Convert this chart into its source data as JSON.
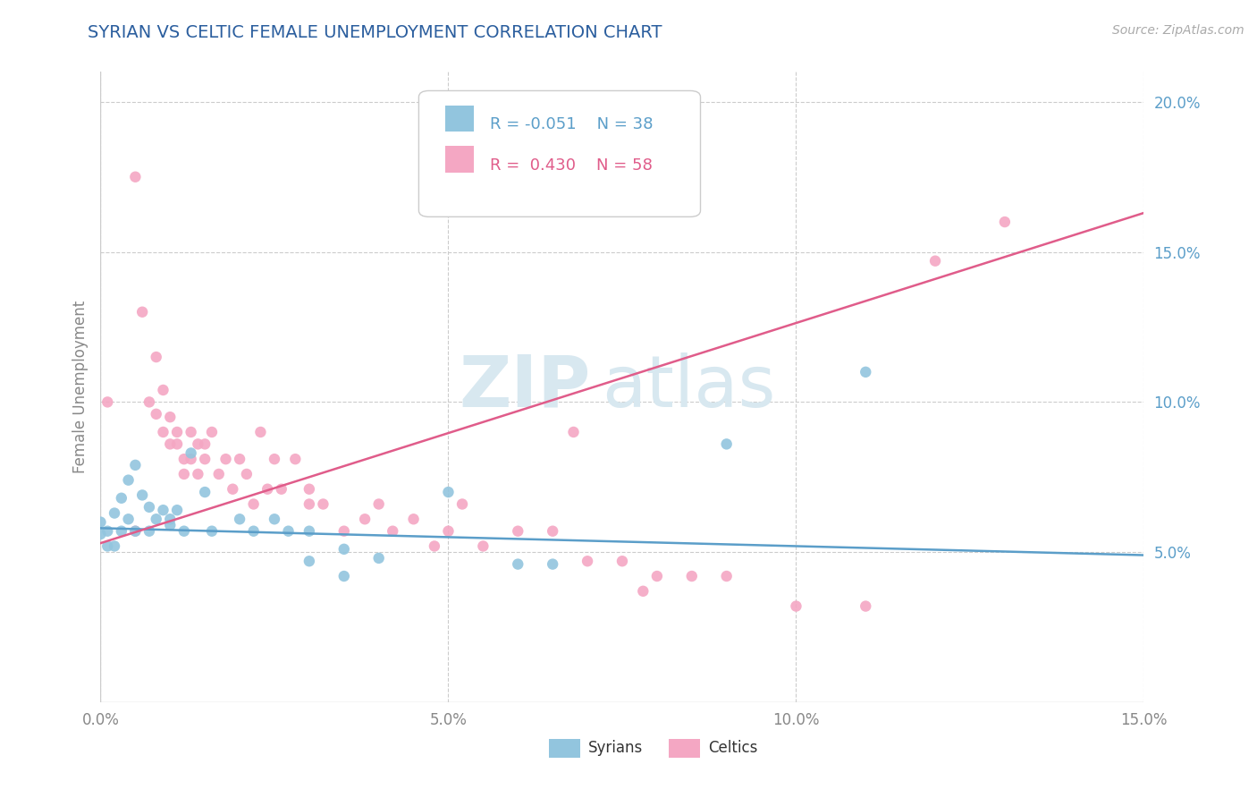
{
  "title": "SYRIAN VS CELTIC FEMALE UNEMPLOYMENT CORRELATION CHART",
  "source": "Source: ZipAtlas.com",
  "ylabel": "Female Unemployment",
  "xlim": [
    0.0,
    0.15
  ],
  "ylim": [
    0.0,
    0.21
  ],
  "ytick_labels": [
    "5.0%",
    "10.0%",
    "15.0%",
    "20.0%"
  ],
  "ytick_values": [
    0.05,
    0.1,
    0.15,
    0.2
  ],
  "xtick_labels": [
    "0.0%",
    "5.0%",
    "10.0%",
    "15.0%"
  ],
  "xtick_values": [
    0.0,
    0.05,
    0.1,
    0.15
  ],
  "syrians_R": "-0.051",
  "syrians_N": "38",
  "celtics_R": "0.430",
  "celtics_N": "58",
  "syrians_color": "#92C5DE",
  "celtics_color": "#F4A7C3",
  "syrian_line_color": "#5B9EC9",
  "celtic_line_color": "#E05C8A",
  "watermark_zip": "ZIP",
  "watermark_atlas": "atlas",
  "legend_label_syrians": "Syrians",
  "legend_label_celtics": "Celtics",
  "syrians_points": [
    [
      0.0,
      0.056
    ],
    [
      0.0,
      0.06
    ],
    [
      0.001,
      0.052
    ],
    [
      0.001,
      0.057
    ],
    [
      0.002,
      0.063
    ],
    [
      0.002,
      0.052
    ],
    [
      0.003,
      0.068
    ],
    [
      0.003,
      0.057
    ],
    [
      0.004,
      0.074
    ],
    [
      0.004,
      0.061
    ],
    [
      0.005,
      0.079
    ],
    [
      0.005,
      0.057
    ],
    [
      0.006,
      0.069
    ],
    [
      0.007,
      0.065
    ],
    [
      0.007,
      0.057
    ],
    [
      0.008,
      0.061
    ],
    [
      0.009,
      0.064
    ],
    [
      0.01,
      0.059
    ],
    [
      0.01,
      0.061
    ],
    [
      0.011,
      0.064
    ],
    [
      0.012,
      0.057
    ],
    [
      0.013,
      0.083
    ],
    [
      0.015,
      0.07
    ],
    [
      0.016,
      0.057
    ],
    [
      0.02,
      0.061
    ],
    [
      0.022,
      0.057
    ],
    [
      0.025,
      0.061
    ],
    [
      0.027,
      0.057
    ],
    [
      0.03,
      0.047
    ],
    [
      0.03,
      0.057
    ],
    [
      0.035,
      0.042
    ],
    [
      0.035,
      0.051
    ],
    [
      0.04,
      0.048
    ],
    [
      0.05,
      0.07
    ],
    [
      0.06,
      0.046
    ],
    [
      0.065,
      0.046
    ],
    [
      0.09,
      0.086
    ],
    [
      0.11,
      0.11
    ]
  ],
  "celtics_points": [
    [
      0.001,
      0.1
    ],
    [
      0.005,
      0.175
    ],
    [
      0.005,
      0.057
    ],
    [
      0.006,
      0.13
    ],
    [
      0.007,
      0.1
    ],
    [
      0.008,
      0.115
    ],
    [
      0.008,
      0.096
    ],
    [
      0.009,
      0.104
    ],
    [
      0.009,
      0.09
    ],
    [
      0.01,
      0.095
    ],
    [
      0.01,
      0.086
    ],
    [
      0.011,
      0.086
    ],
    [
      0.011,
      0.09
    ],
    [
      0.012,
      0.081
    ],
    [
      0.012,
      0.076
    ],
    [
      0.013,
      0.09
    ],
    [
      0.013,
      0.081
    ],
    [
      0.014,
      0.086
    ],
    [
      0.014,
      0.076
    ],
    [
      0.015,
      0.081
    ],
    [
      0.015,
      0.086
    ],
    [
      0.016,
      0.09
    ],
    [
      0.017,
      0.076
    ],
    [
      0.018,
      0.081
    ],
    [
      0.019,
      0.071
    ],
    [
      0.02,
      0.081
    ],
    [
      0.021,
      0.076
    ],
    [
      0.022,
      0.066
    ],
    [
      0.023,
      0.09
    ],
    [
      0.024,
      0.071
    ],
    [
      0.025,
      0.081
    ],
    [
      0.026,
      0.071
    ],
    [
      0.028,
      0.081
    ],
    [
      0.03,
      0.071
    ],
    [
      0.03,
      0.066
    ],
    [
      0.032,
      0.066
    ],
    [
      0.035,
      0.057
    ],
    [
      0.038,
      0.061
    ],
    [
      0.04,
      0.066
    ],
    [
      0.042,
      0.057
    ],
    [
      0.045,
      0.061
    ],
    [
      0.048,
      0.052
    ],
    [
      0.05,
      0.057
    ],
    [
      0.052,
      0.066
    ],
    [
      0.055,
      0.052
    ],
    [
      0.06,
      0.057
    ],
    [
      0.065,
      0.057
    ],
    [
      0.068,
      0.09
    ],
    [
      0.07,
      0.047
    ],
    [
      0.075,
      0.047
    ],
    [
      0.078,
      0.037
    ],
    [
      0.08,
      0.042
    ],
    [
      0.085,
      0.042
    ],
    [
      0.09,
      0.042
    ],
    [
      0.1,
      0.032
    ],
    [
      0.11,
      0.032
    ],
    [
      0.12,
      0.147
    ],
    [
      0.13,
      0.16
    ]
  ],
  "syrians_line_x": [
    0.0,
    0.15
  ],
  "syrians_line_y": [
    0.058,
    0.049
  ],
  "celtics_line_x": [
    0.0,
    0.15
  ],
  "celtics_line_y": [
    0.053,
    0.163
  ],
  "background_color": "#ffffff",
  "grid_color": "#cccccc",
  "title_color": "#2B5E9E",
  "ytick_color": "#5B9EC9",
  "xtick_color": "#888888",
  "ylabel_color": "#888888"
}
